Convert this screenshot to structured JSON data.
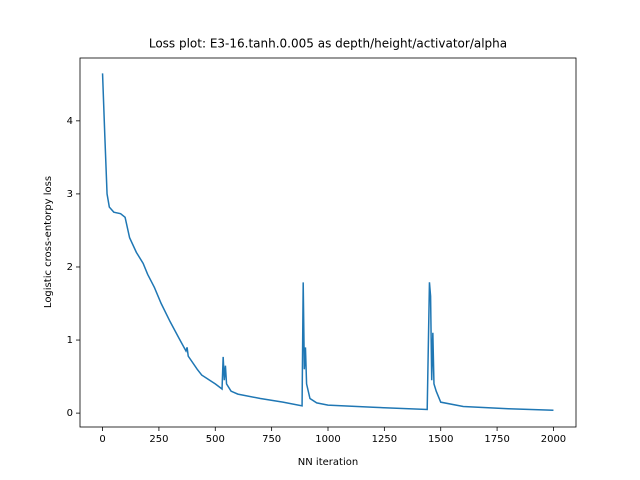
{
  "chart_data": {
    "type": "line",
    "title": "Loss plot: E3-16.tanh.0.005 as depth/height/activator/alpha",
    "x_label": "NN iteration",
    "y_label": "Logistic cross-entorpy loss",
    "x": [
      0,
      10,
      20,
      30,
      50,
      80,
      100,
      120,
      150,
      180,
      200,
      230,
      260,
      300,
      340,
      370,
      375,
      380,
      420,
      440,
      460,
      500,
      530,
      535,
      540,
      545,
      550,
      570,
      600,
      700,
      800,
      885,
      890,
      895,
      900,
      905,
      920,
      950,
      1000,
      1200,
      1440,
      1450,
      1455,
      1460,
      1465,
      1470,
      1480,
      1500,
      1600,
      1800,
      2000
    ],
    "series": [
      {
        "name": "loss",
        "color": "#1f77b4",
        "values": [
          4.65,
          3.8,
          3.0,
          2.82,
          2.75,
          2.73,
          2.68,
          2.4,
          2.2,
          2.05,
          1.9,
          1.72,
          1.5,
          1.25,
          1.02,
          0.85,
          0.9,
          0.78,
          0.6,
          0.52,
          0.48,
          0.4,
          0.33,
          0.77,
          0.45,
          0.65,
          0.4,
          0.3,
          0.26,
          0.2,
          0.15,
          0.1,
          1.79,
          0.6,
          0.9,
          0.4,
          0.2,
          0.14,
          0.11,
          0.08,
          0.05,
          1.79,
          1.6,
          0.45,
          1.1,
          0.4,
          0.3,
          0.15,
          0.09,
          0.06,
          0.04
        ]
      }
    ],
    "xlim": [
      -100,
      2100
    ],
    "ylim": [
      -0.19,
      4.86
    ],
    "xticks": [
      0,
      250,
      500,
      750,
      1000,
      1250,
      1500,
      1750,
      2000
    ],
    "yticks": [
      0,
      1,
      2,
      3,
      4
    ]
  }
}
